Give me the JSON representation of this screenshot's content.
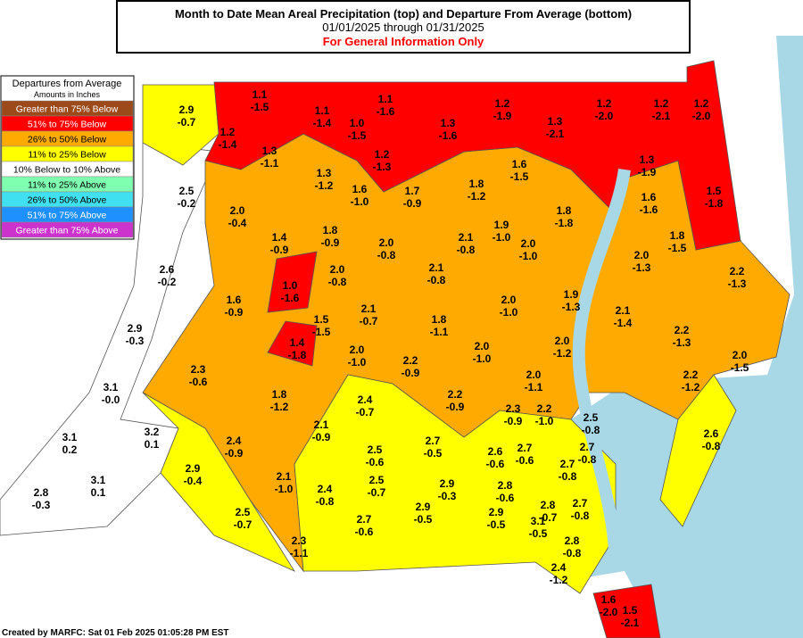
{
  "header": {
    "title": "Month to Date Mean Areal Precipitation (top) and Departure From Average (bottom)",
    "dates": "01/01/2025 through 01/31/2025",
    "note": "For General Information Only"
  },
  "legend": {
    "title": "Departures from Average",
    "subtitle": "Amounts in Inches",
    "items": [
      {
        "label": "Greater than 75% Below",
        "color": "#9c4a1a"
      },
      {
        "label": "51% to 75% Below",
        "color": "#ff0000"
      },
      {
        "label": "26% to 50% Below",
        "color": "#ffaa00"
      },
      {
        "label": "11% to 25% Below",
        "color": "#ffff00"
      },
      {
        "label": "10% Below to 10% Above",
        "color": "#ffffff"
      },
      {
        "label": "11% to 25% Above",
        "color": "#7fffb0"
      },
      {
        "label": "26% to 50% Above",
        "color": "#40e0f0"
      },
      {
        "label": "51% to 75% Above",
        "color": "#1e90ff"
      },
      {
        "label": "Greater than 75% Above",
        "color": "#cc33cc"
      }
    ]
  },
  "regions": [
    {
      "precip": "2.9",
      "departure": "-0.7"
    },
    {
      "precip": "1.1",
      "departure": "-1.5"
    },
    {
      "precip": "1.1",
      "departure": "-1.4"
    },
    {
      "precip": "1.1",
      "departure": "-1.6"
    },
    {
      "precip": "1.2",
      "departure": "-1.4"
    },
    {
      "precip": "1.0",
      "departure": "-1.5"
    },
    {
      "precip": "1.2",
      "departure": "-1.3"
    },
    {
      "precip": "1.3",
      "departure": "-1.6"
    },
    {
      "precip": "1.2",
      "departure": "-1.9"
    },
    {
      "precip": "1.3",
      "departure": "-2.1"
    },
    {
      "precip": "1.2",
      "departure": "-2.0"
    },
    {
      "precip": "1.2",
      "departure": "-2.1"
    },
    {
      "precip": "1.2",
      "departure": "-2.0"
    },
    {
      "precip": "1.3",
      "departure": "-1.1"
    },
    {
      "precip": "1.3",
      "departure": "-1.2"
    },
    {
      "precip": "1.6",
      "departure": "-1.0"
    },
    {
      "precip": "1.7",
      "departure": "-0.9"
    },
    {
      "precip": "1.8",
      "departure": "-1.2"
    },
    {
      "precip": "1.6",
      "departure": "-1.5"
    },
    {
      "precip": "1.3",
      "departure": "-1.9"
    },
    {
      "precip": "1.5",
      "departure": "-1.8"
    },
    {
      "precip": "2.5",
      "departure": "-0.2"
    },
    {
      "precip": "2.0",
      "departure": "-0.4"
    },
    {
      "precip": "1.4",
      "departure": "-0.9"
    },
    {
      "precip": "1.8",
      "departure": "-0.9"
    },
    {
      "precip": "1.9",
      "departure": "-1.0"
    },
    {
      "precip": "2.0",
      "departure": "-1.0"
    },
    {
      "precip": "2.1",
      "departure": "-0.8"
    },
    {
      "precip": "1.8",
      "departure": "-1.8"
    },
    {
      "precip": "1.6",
      "departure": "-1.6"
    },
    {
      "precip": "1.8",
      "departure": "-1.5"
    },
    {
      "precip": "2.0",
      "departure": "-1.3"
    },
    {
      "precip": "2.2",
      "departure": "-1.3"
    },
    {
      "precip": "2.0",
      "departure": "-0.8"
    },
    {
      "precip": "2.0",
      "departure": "-0.8"
    },
    {
      "precip": "2.1",
      "departure": "-0.8"
    },
    {
      "precip": "2.6",
      "departure": "-0.2"
    },
    {
      "precip": "1.6",
      "departure": "-0.9"
    },
    {
      "precip": "1.0",
      "departure": "-1.6"
    },
    {
      "precip": "2.1",
      "departure": "-0.7"
    },
    {
      "precip": "2.0",
      "departure": "-1.0"
    },
    {
      "precip": "1.9",
      "departure": "-1.3"
    },
    {
      "precip": "2.1",
      "departure": "-1.4"
    },
    {
      "precip": "1.5",
      "departure": "-1.5"
    },
    {
      "precip": "1.8",
      "departure": "-1.1"
    },
    {
      "precip": "2.9",
      "departure": "-0.3"
    },
    {
      "precip": "1.4",
      "departure": "-1.8"
    },
    {
      "precip": "2.0",
      "departure": "-1.0"
    },
    {
      "precip": "2.2",
      "departure": "-0.9"
    },
    {
      "precip": "2.0",
      "departure": "-1.0"
    },
    {
      "precip": "2.0",
      "departure": "-1.2"
    },
    {
      "precip": "2.2",
      "departure": "-1.3"
    },
    {
      "precip": "2.0",
      "departure": "-1.5"
    },
    {
      "precip": "2.3",
      "departure": "-0.6"
    },
    {
      "precip": "2.0",
      "departure": "-1.1"
    },
    {
      "precip": "2.2",
      "departure": "-1.2"
    },
    {
      "precip": "3.1",
      "departure": "-0.0"
    },
    {
      "precip": "1.8",
      "departure": "-1.2"
    },
    {
      "precip": "2.4",
      "departure": "-0.7"
    },
    {
      "precip": "2.2",
      "departure": "-0.9"
    },
    {
      "precip": "2.3",
      "departure": "-0.9"
    },
    {
      "precip": "2.2",
      "departure": "-1.0"
    },
    {
      "precip": "2.5",
      "departure": "-0.8"
    },
    {
      "precip": "2.1",
      "departure": "-0.9"
    },
    {
      "precip": "3.2",
      "departure": "0.1"
    },
    {
      "precip": "3.1",
      "departure": "0.2"
    },
    {
      "precip": "2.4",
      "departure": "-0.9"
    },
    {
      "precip": "2.7",
      "departure": "-0.5"
    },
    {
      "precip": "2.5",
      "departure": "-0.6"
    },
    {
      "precip": "2.6",
      "departure": "-0.6"
    },
    {
      "precip": "2.7",
      "departure": "-0.6"
    },
    {
      "precip": "2.7",
      "departure": "-0.8"
    },
    {
      "precip": "2.6",
      "departure": "-0.8"
    },
    {
      "precip": "2.9",
      "departure": "-0.4"
    },
    {
      "precip": "2.7",
      "departure": "-0.8"
    },
    {
      "precip": "2.1",
      "departure": "-1.0"
    },
    {
      "precip": "2.5",
      "departure": "-0.7"
    },
    {
      "precip": "2.9",
      "departure": "-0.3"
    },
    {
      "precip": "2.8",
      "departure": "-0.6"
    },
    {
      "precip": "2.4",
      "departure": "-0.8"
    },
    {
      "precip": "3.1",
      "departure": "0.1"
    },
    {
      "precip": "2.8",
      "departure": "-0.3"
    },
    {
      "precip": "2.8",
      "departure": "-0.7"
    },
    {
      "precip": "2.7",
      "departure": "-0.8"
    },
    {
      "precip": "2.9",
      "departure": "-0.5"
    },
    {
      "precip": "2.9",
      "departure": "-0.5"
    },
    {
      "precip": "2.5",
      "departure": "-0.7"
    },
    {
      "precip": "2.7",
      "departure": "-0.6"
    },
    {
      "precip": "3.1",
      "departure": "-0.5"
    },
    {
      "precip": "2.8",
      "departure": "-0.8"
    },
    {
      "precip": "2.3",
      "departure": "-1.1"
    },
    {
      "precip": "2.4",
      "departure": "-1.2"
    },
    {
      "precip": "1.6",
      "departure": "-2.0"
    },
    {
      "precip": "1.5",
      "departure": "-2.1"
    }
  ],
  "footer": "Created by MARFC: Sat 01 Feb 2025 01:05:28 PM EST"
}
